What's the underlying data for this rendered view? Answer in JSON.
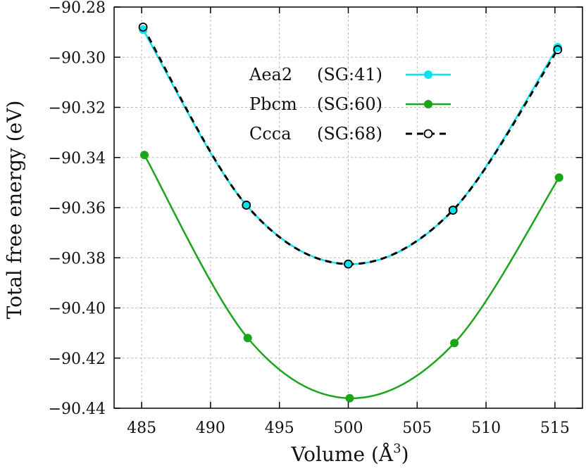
{
  "chart_data": {
    "type": "line",
    "xlabel": "Volume (Å",
    "xlabel_sup": "3",
    "xlabel_end": ")",
    "ylabel": "Total free energy (eV)",
    "xlim": [
      483,
      517
    ],
    "ylim": [
      -90.44,
      -90.28
    ],
    "x_ticks": [
      485,
      490,
      495,
      500,
      505,
      510,
      515
    ],
    "x_tick_labels": [
      "485",
      "490",
      "495",
      "500",
      "505",
      "510",
      "515"
    ],
    "y_ticks": [
      -90.28,
      -90.3,
      -90.32,
      -90.34,
      -90.36,
      -90.38,
      -90.4,
      -90.42,
      -90.44
    ],
    "y_tick_labels": [
      "−90.28",
      "−90.30",
      "−90.32",
      "−90.34",
      "−90.36",
      "−90.38",
      "−90.40",
      "−90.42",
      "−90.44"
    ],
    "grid": true,
    "legend_position": "top-center",
    "series": [
      {
        "name": "Aea2",
        "sg": "(SG:41)",
        "color": "#00e5ee",
        "marker": "filled-circle",
        "line": "solid",
        "x": [
          485.1,
          492.6,
          500.0,
          507.6,
          515.2
        ],
        "y": [
          -90.289,
          -90.359,
          -90.3825,
          -90.361,
          -90.296
        ]
      },
      {
        "name": "Pbcm",
        "sg": "(SG:60)",
        "color": "#1aa51a",
        "marker": "filled-circle",
        "line": "solid",
        "x": [
          485.2,
          492.7,
          500.1,
          507.7,
          515.3
        ],
        "y": [
          -90.339,
          -90.412,
          -90.436,
          -90.414,
          -90.348
        ]
      },
      {
        "name": "Ccca",
        "sg": "(SG:68)",
        "color": "#000000",
        "marker": "open-circle",
        "line": "dashed",
        "x": [
          485.1,
          492.6,
          500.0,
          507.6,
          515.2
        ],
        "y": [
          -90.288,
          -90.359,
          -90.3825,
          -90.361,
          -90.297
        ]
      }
    ]
  }
}
